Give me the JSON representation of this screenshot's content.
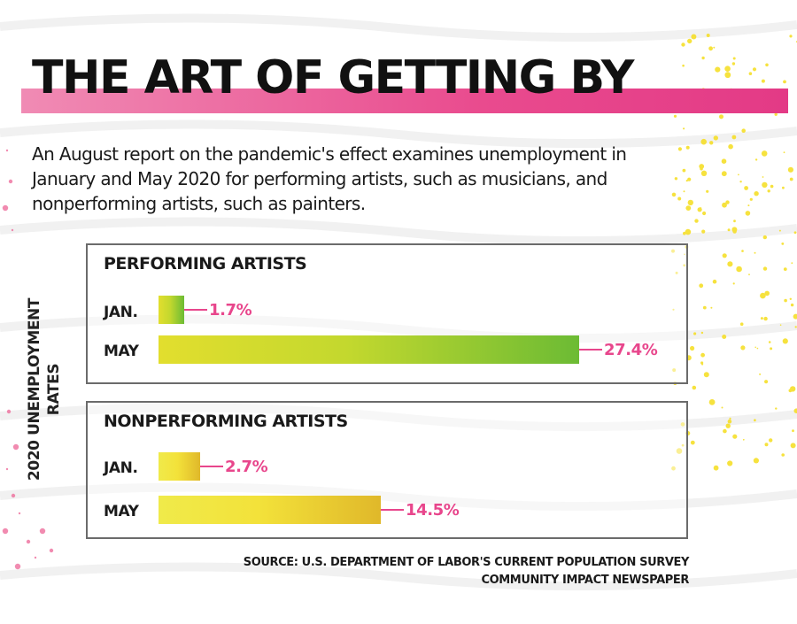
{
  "title": "THE ART OF GETTING BY",
  "intro": "An August report on the pandemic's effect examines unemployment in January and May 2020 for performing artists, such as musicians, and nonperforming artists, such as painters.",
  "yaxis": {
    "line1": "2020 UNEMPLOYMENT",
    "line2": "RATES"
  },
  "colors": {
    "title_band": "#e94b8e",
    "value_label": "#e8468c",
    "performing_bar": "#8cc63f",
    "nonperforming_bar": "#f3e23a",
    "panel_border": "#6b6b6b"
  },
  "chart_data": {
    "type": "bar",
    "orientation": "horizontal",
    "unit": "%",
    "xlim": [
      0,
      27.4
    ],
    "groups": [
      {
        "name": "PERFORMING ARTISTS",
        "categories": [
          "JAN.",
          "MAY"
        ],
        "values": [
          1.7,
          27.4
        ],
        "labels": [
          "1.7%",
          "27.4%"
        ]
      },
      {
        "name": "NONPERFORMING ARTISTS",
        "categories": [
          "JAN.",
          "MAY"
        ],
        "values": [
          2.7,
          14.5
        ],
        "labels": [
          "2.7%",
          "14.5%"
        ]
      }
    ]
  },
  "source": {
    "line1": "SOURCE: U.S. DEPARTMENT OF LABOR'S CURRENT POPULATION SURVEY",
    "line2": "COMMUNITY IMPACT NEWSPAPER"
  }
}
